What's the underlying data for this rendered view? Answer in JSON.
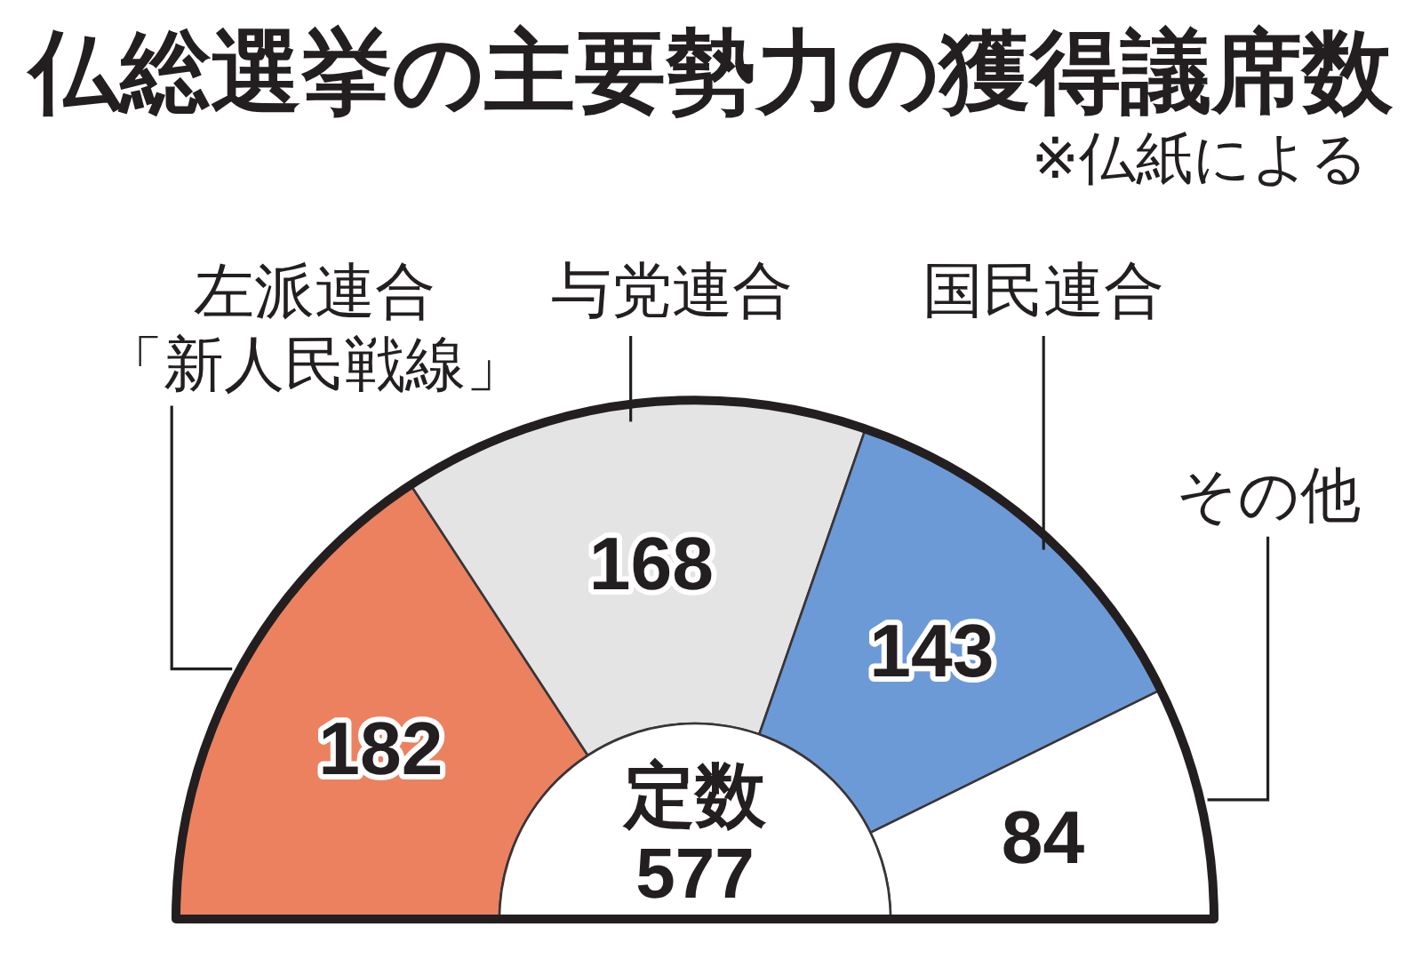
{
  "chart_data": {
    "type": "donut",
    "title": "仏総選挙の主要勢力の獲得議席数",
    "subtitle": "※仏紙による",
    "categories": [
      "左派連合「新人民戦線」",
      "与党連合",
      "国民連合",
      "その他"
    ],
    "values": [
      182,
      168,
      143,
      84
    ],
    "colors": [
      "#ec8160",
      "#e4e4e4",
      "#6c9ad7",
      "#ffffff"
    ],
    "data_labels": true,
    "annotations": [
      "定数\n577"
    ]
  }
}
